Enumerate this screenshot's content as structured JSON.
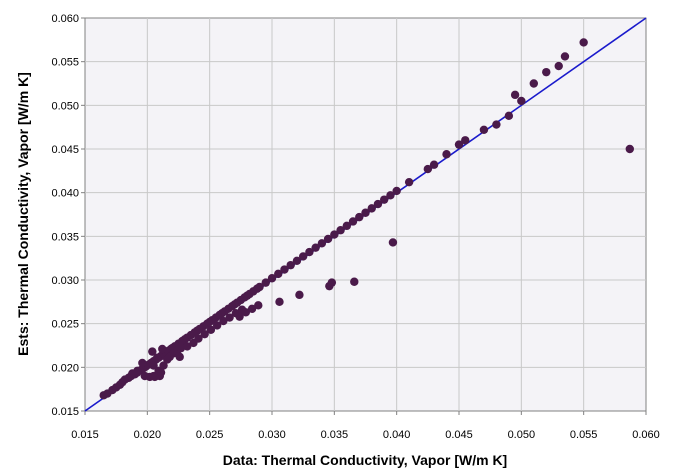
{
  "chart_data": {
    "type": "scatter",
    "xlabel": "Data: Thermal Conductivity, Vapor [W/m K]",
    "ylabel": "Ests: Thermal Conductivity, Vapor [W/m K]",
    "xlim": [
      0.015,
      0.06
    ],
    "ylim": [
      0.015,
      0.06
    ],
    "x_ticks": [
      "0.015",
      "0.020",
      "0.025",
      "0.030",
      "0.035",
      "0.040",
      "0.045",
      "0.050",
      "0.055",
      "0.060"
    ],
    "y_ticks": [
      "0.015",
      "0.020",
      "0.025",
      "0.030",
      "0.035",
      "0.040",
      "0.045",
      "0.050",
      "0.055",
      "0.060"
    ],
    "grid": true,
    "colors": {
      "points": "#4a1a4a",
      "parity_line": "#1a1acc",
      "plot_bg": "#f4f3f7",
      "grid": "#c8c8c8"
    },
    "series": [
      {
        "type": "line",
        "x": [
          0.015,
          0.06
        ],
        "y": [
          0.015,
          0.06
        ]
      },
      {
        "type": "scatter",
        "x": [
          0.0165,
          0.0168,
          0.0172,
          0.0175,
          0.0178,
          0.018,
          0.0182,
          0.0185,
          0.0187,
          0.019,
          0.0192,
          0.0195,
          0.0197,
          0.0199,
          0.0201,
          0.0203,
          0.0205,
          0.0207,
          0.0209,
          0.0211,
          0.0213,
          0.0215,
          0.0217,
          0.0219,
          0.022,
          0.0222,
          0.0225,
          0.0228,
          0.023,
          0.0232,
          0.0235,
          0.0238,
          0.024,
          0.0242,
          0.0245,
          0.0248,
          0.025,
          0.0252,
          0.0255,
          0.0258,
          0.026,
          0.0262,
          0.0265,
          0.0268,
          0.027,
          0.0272,
          0.0275,
          0.0278,
          0.028,
          0.0282,
          0.0285,
          0.0288,
          0.029,
          0.0295,
          0.03,
          0.0305,
          0.031,
          0.0315,
          0.032,
          0.0325,
          0.033,
          0.0335,
          0.034,
          0.0345,
          0.035,
          0.0355,
          0.036,
          0.0365,
          0.037,
          0.0375,
          0.038,
          0.0385,
          0.039,
          0.0395,
          0.04,
          0.041,
          0.0425,
          0.043,
          0.044,
          0.045,
          0.0455,
          0.047,
          0.048,
          0.049,
          0.0495,
          0.05,
          0.051,
          0.052,
          0.053,
          0.0535,
          0.055,
          0.0198,
          0.0202,
          0.0206,
          0.021,
          0.0188,
          0.0192,
          0.0196,
          0.0204,
          0.0208,
          0.0212,
          0.0205,
          0.0209,
          0.0213,
          0.0216,
          0.0218,
          0.0221,
          0.0224,
          0.0227,
          0.0226,
          0.0232,
          0.0237,
          0.0241,
          0.0246,
          0.0251,
          0.0256,
          0.0261,
          0.0266,
          0.0271,
          0.0276,
          0.0274,
          0.0279,
          0.0284,
          0.0289,
          0.0306,
          0.0322,
          0.0346,
          0.0348,
          0.0366,
          0.0397,
          0.0587,
          0.0205,
          0.0211
        ],
        "y": [
          0.0168,
          0.017,
          0.0174,
          0.0177,
          0.018,
          0.0183,
          0.0186,
          0.0188,
          0.019,
          0.0192,
          0.0194,
          0.0197,
          0.0199,
          0.0201,
          0.0203,
          0.0205,
          0.0207,
          0.0209,
          0.0211,
          0.0213,
          0.0215,
          0.0217,
          0.0219,
          0.0221,
          0.0222,
          0.0224,
          0.0227,
          0.023,
          0.0232,
          0.0234,
          0.0237,
          0.024,
          0.0242,
          0.0244,
          0.0247,
          0.025,
          0.0252,
          0.0254,
          0.0257,
          0.026,
          0.0262,
          0.0264,
          0.0267,
          0.027,
          0.0272,
          0.0274,
          0.0277,
          0.028,
          0.0282,
          0.0284,
          0.0287,
          0.029,
          0.0292,
          0.0297,
          0.0302,
          0.0307,
          0.0312,
          0.0317,
          0.0322,
          0.0327,
          0.0332,
          0.0337,
          0.0342,
          0.0347,
          0.0352,
          0.0357,
          0.0362,
          0.0367,
          0.0372,
          0.0377,
          0.0382,
          0.0387,
          0.0392,
          0.0397,
          0.0402,
          0.0412,
          0.0427,
          0.0432,
          0.0444,
          0.0455,
          0.046,
          0.0472,
          0.0478,
          0.0488,
          0.0512,
          0.0505,
          0.0525,
          0.0538,
          0.0545,
          0.0556,
          0.0572,
          0.019,
          0.0189,
          0.0189,
          0.019,
          0.0193,
          0.0196,
          0.0205,
          0.0218,
          0.0211,
          0.0221,
          0.019,
          0.0196,
          0.0202,
          0.0209,
          0.0212,
          0.0216,
          0.0219,
          0.0222,
          0.0212,
          0.0224,
          0.0228,
          0.0233,
          0.0238,
          0.0243,
          0.0248,
          0.0253,
          0.0257,
          0.0262,
          0.0266,
          0.0258,
          0.0263,
          0.0267,
          0.0271,
          0.0275,
          0.0283,
          0.0293,
          0.0297,
          0.0298,
          0.0343,
          0.045,
          0.0202,
          0.0194
        ]
      }
    ]
  }
}
